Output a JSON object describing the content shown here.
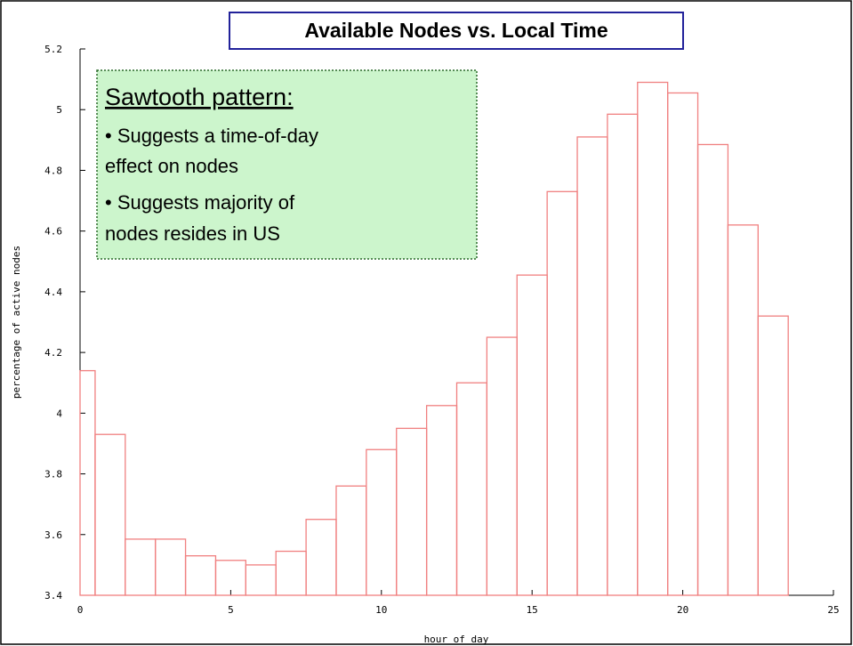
{
  "chart_data": {
    "type": "histogram",
    "title": "Available Nodes vs. Local Time",
    "xlabel": "hour of day",
    "ylabel": "percentage of active nodes",
    "annotation": {
      "heading": "Sawtooth pattern:",
      "lines": [
        "• Suggests a time-of-day",
        "effect on nodes",
        "• Suggests majority of",
        "nodes resides in US"
      ]
    },
    "bins": [
      -0.5,
      0.5,
      1.5,
      2.5,
      3.5,
      4.5,
      5.5,
      6.5,
      7.5,
      8.5,
      9.5,
      10.5,
      11.5,
      12.5,
      13.5,
      14.5,
      15.5,
      16.5,
      17.5,
      18.5,
      19.5,
      20.5,
      21.5,
      22.5,
      23.5
    ],
    "values": [
      4.14,
      3.93,
      3.585,
      3.585,
      3.53,
      3.515,
      3.5,
      3.545,
      3.65,
      3.76,
      3.88,
      3.95,
      4.025,
      4.1,
      4.25,
      4.455,
      4.73,
      4.91,
      4.985,
      5.09,
      5.055,
      4.885,
      4.62,
      4.32
    ],
    "color": "#f08080",
    "xlim": [
      0,
      25
    ],
    "xticks": [
      0,
      5,
      10,
      15,
      20,
      25
    ],
    "ylim": [
      3.4,
      5.2
    ],
    "yticks": [
      3.4,
      3.6,
      3.8,
      4,
      4.2,
      4.4,
      4.6,
      4.8,
      5,
      5.2
    ]
  }
}
